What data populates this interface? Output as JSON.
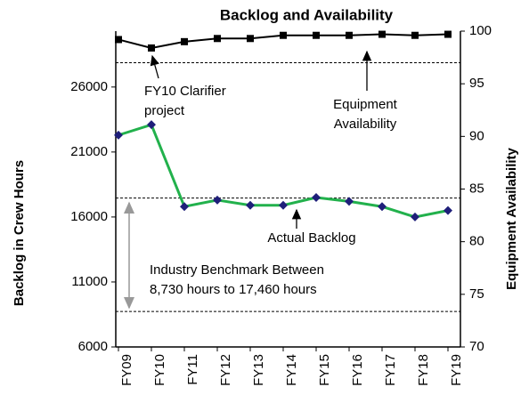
{
  "chart_data": {
    "type": "line",
    "title": "Backlog and Availability",
    "y_label": "Backlog in Crew Hours",
    "y2_label": "Equipment Availability",
    "categories": [
      "FY09",
      "FY10",
      "FY11",
      "FY12",
      "FY13",
      "FY14",
      "FY15",
      "FY16",
      "FY17",
      "FY18",
      "FY19"
    ],
    "series": [
      {
        "name": "Actual Backlog",
        "color": "#22b14c",
        "marker_color": "#1f1f7a",
        "axis": "y",
        "values": [
          22300,
          23100,
          16800,
          17300,
          16900,
          16900,
          17500,
          17200,
          16800,
          16000,
          16500
        ]
      },
      {
        "name": "Equipment Availability",
        "color": "#000000",
        "marker_color": "#000000",
        "axis": "y2",
        "values": [
          99.2,
          98.4,
          99.0,
          99.3,
          99.3,
          99.6,
          99.6,
          99.6,
          99.7,
          99.6,
          99.7
        ]
      }
    ],
    "ylim": [
      6000,
      30300
    ],
    "yticks": [
      6000,
      11000,
      16000,
      21000,
      26000
    ],
    "y2lim": [
      70,
      100
    ],
    "y2ticks": [
      70,
      75,
      80,
      85,
      90,
      95,
      100
    ],
    "reference_lines": [
      {
        "axis": "y",
        "value": 17460
      },
      {
        "axis": "y",
        "value": 8730
      },
      {
        "axis": "y2",
        "value": 97
      }
    ],
    "annotations": [
      {
        "lines": [
          "FY10 Clarifier",
          "project"
        ]
      },
      {
        "lines": [
          "Equipment",
          "Availability"
        ]
      },
      {
        "lines": [
          "Actual Backlog"
        ]
      },
      {
        "lines": [
          "Industry Benchmark Between",
          "8,730 hours to 17,460 hours"
        ]
      }
    ]
  }
}
